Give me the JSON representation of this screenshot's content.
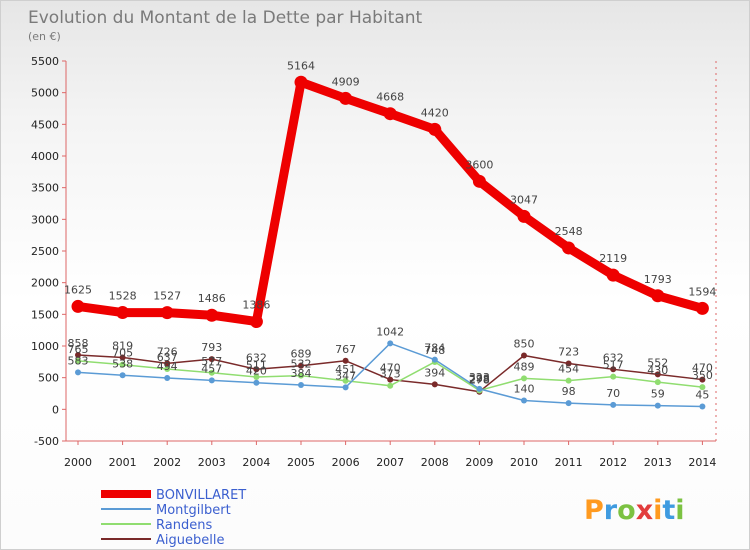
{
  "header": {
    "title": "Evolution du Montant de la Dette par Habitant",
    "subtitle": "(en €)"
  },
  "logo": {
    "text": "Proxiti"
  },
  "chart_data": {
    "type": "line",
    "title": "Evolution du Montant de la Dette par Habitant",
    "subtitle": "(en €)",
    "xlabel": "",
    "ylabel": "",
    "x": [
      "2000",
      "2001",
      "2002",
      "2003",
      "2004",
      "2005",
      "2006",
      "2007",
      "2008",
      "2009",
      "2010",
      "2011",
      "2012",
      "2013",
      "2014"
    ],
    "ylim": [
      -500,
      5500
    ],
    "yticks": [
      -500,
      0,
      500,
      1000,
      1500,
      2000,
      2500,
      3000,
      3500,
      4000,
      4500,
      5000,
      5500
    ],
    "grid": false,
    "legend": "bottom-left",
    "series": [
      {
        "name": "BONVILLARET",
        "color": "#ee0000",
        "values": [
          1625,
          1528,
          1527,
          1486,
          1386,
          5164,
          4909,
          4668,
          4420,
          3600,
          3047,
          2548,
          2119,
          1793,
          1594
        ],
        "labels": [
          "1625",
          "1528",
          "1527",
          "1486",
          "1386",
          "5164",
          "4909",
          "4668",
          "4420",
          "3600",
          "3047",
          "2548",
          "2119",
          "1793",
          "1594"
        ]
      },
      {
        "name": "Montgilbert",
        "color": "#5b9bd5",
        "values": [
          583,
          538,
          494,
          457,
          420,
          384,
          347,
          1042,
          784,
          323,
          140,
          98,
          70,
          59,
          45
        ],
        "labels": [
          "583",
          "538",
          "494",
          "457",
          "420",
          "384",
          "347",
          "1042",
          "784",
          "323",
          "140",
          "98",
          "70",
          "59",
          "45"
        ]
      },
      {
        "name": "Randens",
        "color": "#90dd70",
        "values": [
          765,
          705,
          637,
          577,
          511,
          532,
          451,
          373,
          748,
          298,
          489,
          454,
          517,
          430,
          350
        ],
        "labels": [
          "765",
          "705",
          "637",
          "577",
          "511",
          "532",
          "451",
          "373",
          "748",
          "298",
          "489",
          "454",
          "517",
          "430",
          "350"
        ]
      },
      {
        "name": "Aiguebelle",
        "color": "#7a2a2a",
        "values": [
          858,
          819,
          726,
          793,
          632,
          689,
          767,
          470,
          394,
          278,
          850,
          723,
          632,
          552,
          470
        ],
        "labels": [
          "858",
          "819",
          "726",
          "793",
          "632",
          "689",
          "767",
          "470",
          "394",
          "278",
          "850",
          "723",
          "632",
          "552",
          "470"
        ]
      }
    ]
  }
}
